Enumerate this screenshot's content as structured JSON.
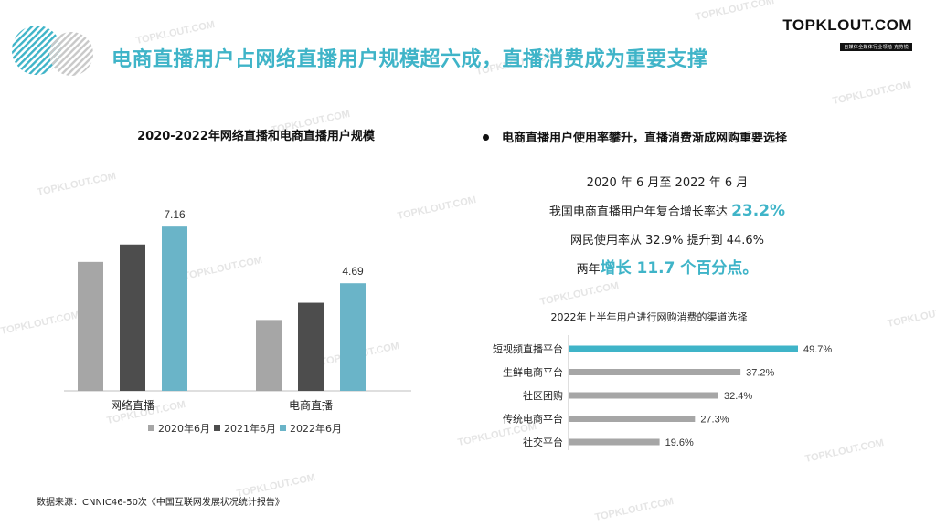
{
  "brand": {
    "name": "TOPKLOUT.COM",
    "tagline": "自媒体全媒体行业领袖",
    "tagline_cn": "克劳锐"
  },
  "title": "电商直播用户占网络直播用户规模超六成，直播消费成为重要支撑",
  "watermark": "TOPKLOUT.COM",
  "colors": {
    "accent": "#3fb4c8",
    "bar_2020": "#a6a6a6",
    "bar_2021": "#4d4d4d",
    "bar_2022": "#6ab4c8",
    "hbar_gray": "#a6a6a6"
  },
  "left_chart": {
    "title": "2020-2022年网络直播和电商直播用户规模"
  },
  "right": {
    "heading": "电商直播用户使用率攀升，直播消费渐成网购重要选择",
    "line1": "2020 年 6 月至 2022 年 6 月",
    "line2_text": "我国电商直播用户年复合增长率达",
    "line2_value": "23.2%",
    "line3": "网民使用率从 32.9% 提升到 44.6%",
    "line4_pre": "两年",
    "line4_value": "增长 11.7 个百分点。",
    "hbar_title": "2022年上半年用户进行网购消费的渠道选择"
  },
  "source": "数据来源：CNNIC46-50次《中国互联网发展状况统计报告》",
  "chart_data": [
    {
      "type": "bar",
      "title": "2020-2022年网络直播和电商直播用户规模",
      "categories": [
        "网络直播",
        "电商直播"
      ],
      "series": [
        {
          "name": "2020年6月",
          "values": [
            5.62,
            3.09
          ],
          "color": "#a6a6a6"
        },
        {
          "name": "2021年6月",
          "values": [
            6.38,
            3.84
          ],
          "color": "#4d4d4d"
        },
        {
          "name": "2022年6月",
          "values": [
            7.16,
            4.69
          ],
          "color": "#6ab4c8"
        }
      ],
      "data_labels": {
        "2022年6月": [
          "7.16",
          "4.69"
        ]
      },
      "ylim": [
        0,
        8.6
      ],
      "legend": "bottom"
    },
    {
      "type": "bar",
      "orientation": "horizontal",
      "title": "2022年上半年用户进行网购消费的渠道选择",
      "categories": [
        "短视频直播平台",
        "生鲜电商平台",
        "社区团购",
        "传统电商平台",
        "社交平台"
      ],
      "values": [
        49.7,
        37.2,
        32.4,
        27.3,
        19.6
      ],
      "labels": [
        "49.7%",
        "37.2%",
        "32.4%",
        "27.3%",
        "19.6%"
      ],
      "highlight": "短视频直播平台"
    }
  ]
}
